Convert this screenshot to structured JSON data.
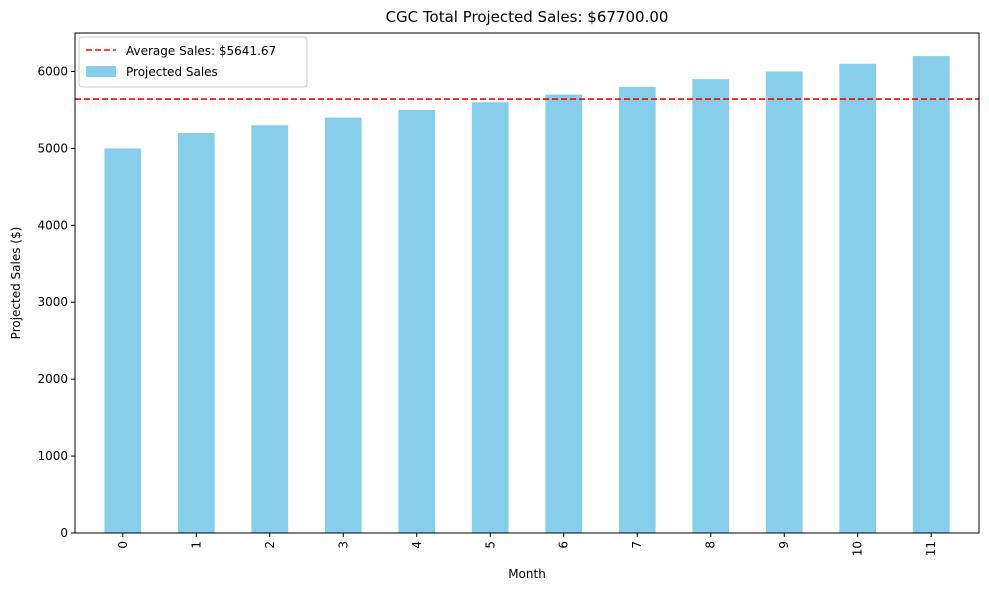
{
  "chart_data": {
    "type": "bar",
    "title": "CGC Total Projected Sales: $67700.00",
    "xlabel": "Month",
    "ylabel": "Projected Sales ($)",
    "categories": [
      "0",
      "1",
      "2",
      "3",
      "4",
      "5",
      "6",
      "7",
      "8",
      "9",
      "10",
      "11"
    ],
    "series": [
      {
        "name": "Projected Sales",
        "color": "#87ceeb",
        "values": [
          5000,
          5200,
          5300,
          5400,
          5500,
          5600,
          5700,
          5800,
          5900,
          6000,
          6100,
          6200
        ]
      }
    ],
    "average_line": {
      "label": "Average Sales: $5641.67",
      "value": 5641.67,
      "color": "#ff0000",
      "style": "dashed"
    },
    "ylim": [
      0,
      6500
    ],
    "yticks": [
      0,
      1000,
      2000,
      3000,
      4000,
      5000,
      6000
    ],
    "grid": false,
    "legend_position": "top-left",
    "x_tick_rotation": "vertical"
  }
}
